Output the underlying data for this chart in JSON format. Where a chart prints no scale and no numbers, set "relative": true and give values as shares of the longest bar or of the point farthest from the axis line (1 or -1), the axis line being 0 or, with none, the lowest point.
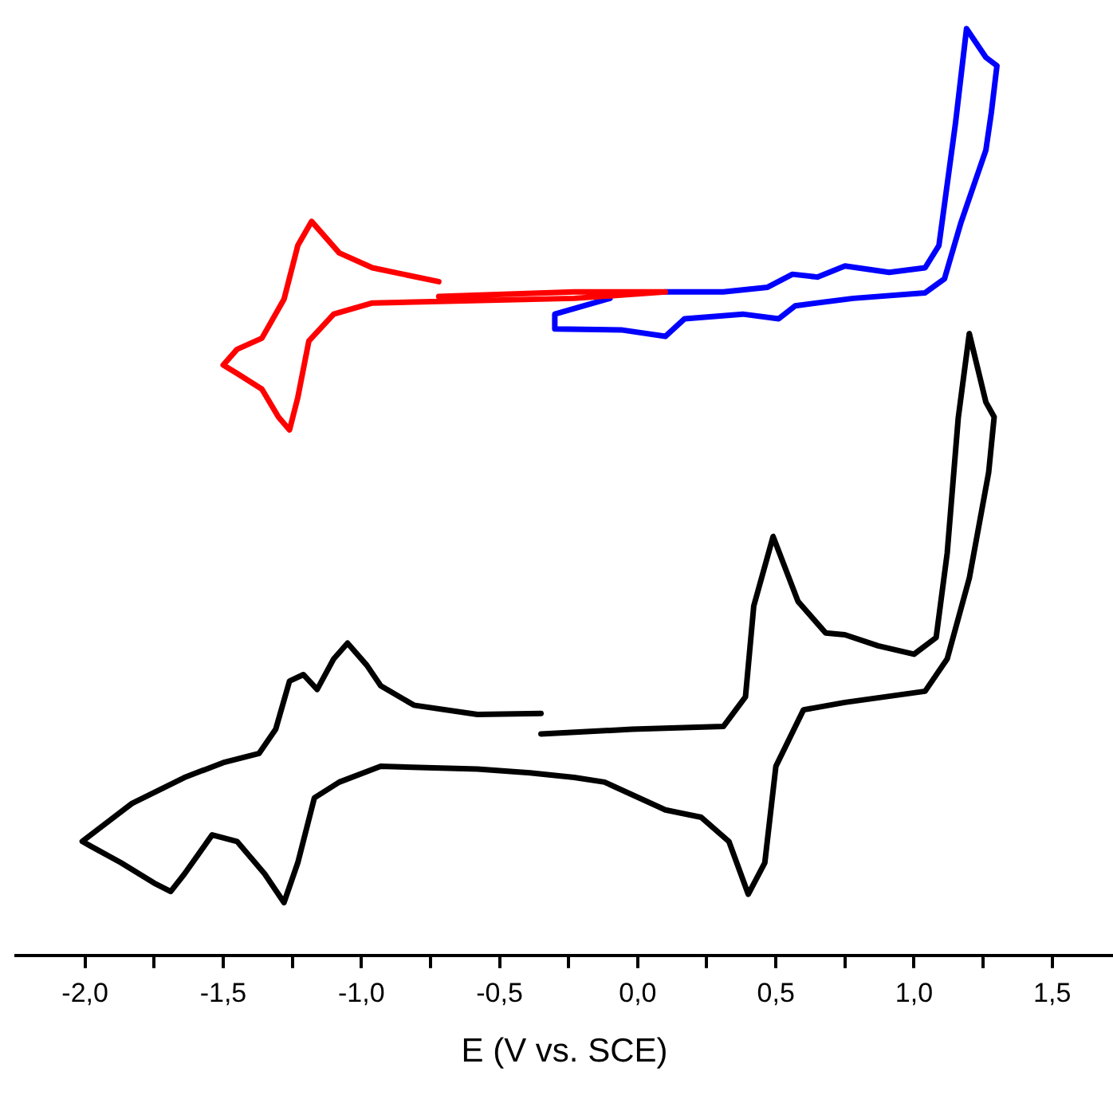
{
  "chart_data": {
    "type": "line",
    "xlabel": "E (V vs. SCE)",
    "relative": true,
    "grid": false,
    "legend": false,
    "tick_labels": "x",
    "marker": "none",
    "line_style": "solid",
    "xlim": [
      -2.25,
      1.72
    ],
    "xticks": [
      {
        "value": -2,
        "label": "-2,0"
      },
      {
        "value": -1.75,
        "label": null
      },
      {
        "value": -1.5,
        "label": "-1,5"
      },
      {
        "value": -1.25,
        "label": null
      },
      {
        "value": -1,
        "label": "-1,0"
      },
      {
        "value": -0.75,
        "label": null
      },
      {
        "value": -0.5,
        "label": "-0,5"
      },
      {
        "value": -0.25,
        "label": null
      },
      {
        "value": 0,
        "label": "0,0"
      },
      {
        "value": 0.25,
        "label": null
      },
      {
        "value": 0.5,
        "label": "0,5"
      },
      {
        "value": 0.75,
        "label": null
      },
      {
        "value": 1,
        "label": "1,0"
      },
      {
        "value": 1.25,
        "label": null
      },
      {
        "value": 1.5,
        "label": "1,5"
      }
    ],
    "series": [
      {
        "color": "#000000",
        "x": [
          -0.35,
          -0.58,
          -0.81,
          -0.93,
          -0.98,
          -1.05,
          -1.1,
          -1.16,
          -1.21,
          -1.26,
          -1.31,
          -1.37,
          -1.5,
          -1.64,
          -1.83,
          -2.01,
          -1.98,
          -1.87,
          -1.75,
          -1.69,
          -1.64,
          -1.54,
          -1.45,
          -1.35,
          -1.28,
          -1.23,
          -1.17,
          -1.08,
          -0.93,
          -0.58,
          -0.39,
          -0.23,
          -0.12,
          0.1,
          0.23,
          0.33,
          0.4,
          0.46,
          0.5,
          0.6,
          0.75,
          1.04,
          1.12,
          1.2,
          1.27,
          1.29,
          1.26,
          1.2,
          1.16,
          1.12,
          1.08,
          1.0,
          0.87,
          0.75,
          0.68,
          0.58,
          0.49,
          0.42,
          0.39,
          0.31,
          -0.02,
          -0.35
        ],
        "values": [
          0.261,
          0.26,
          0.27,
          0.291,
          0.313,
          0.337,
          0.32,
          0.287,
          0.303,
          0.296,
          0.244,
          0.218,
          0.208,
          0.192,
          0.164,
          0.123,
          0.118,
          0.1,
          0.078,
          0.069,
          0.088,
          0.13,
          0.123,
          0.088,
          0.057,
          0.1,
          0.17,
          0.187,
          0.204,
          0.201,
          0.197,
          0.192,
          0.187,
          0.157,
          0.149,
          0.123,
          0.066,
          0.1,
          0.204,
          0.265,
          0.273,
          0.285,
          0.32,
          0.407,
          0.521,
          0.581,
          0.597,
          0.671,
          0.58,
          0.434,
          0.343,
          0.325,
          0.334,
          0.346,
          0.348,
          0.382,
          0.452,
          0.377,
          0.279,
          0.247,
          0.244,
          0.239
        ]
      },
      {
        "color": "#ff0000",
        "x": [
          -0.72,
          -0.23,
          0.1,
          -0.23,
          -0.96,
          -1.1,
          -1.19,
          -1.23,
          -1.26,
          -1.3,
          -1.36,
          -1.45,
          -1.5,
          -1.45,
          -1.36,
          -1.28,
          -1.23,
          -1.18,
          -1.08,
          -0.96,
          -0.72
        ],
        "values": [
          0.711,
          0.716,
          0.716,
          0.709,
          0.704,
          0.692,
          0.663,
          0.602,
          0.567,
          0.581,
          0.611,
          0.628,
          0.637,
          0.654,
          0.666,
          0.708,
          0.766,
          0.792,
          0.758,
          0.742,
          0.727
        ]
      },
      {
        "color": "#0000ff",
        "x": [
          0.1,
          0.31,
          0.47,
          0.56,
          0.65,
          0.75,
          0.91,
          1.04,
          1.09,
          1.15,
          1.19,
          1.26,
          1.3,
          1.28,
          1.26,
          1.17,
          1.11,
          1.04,
          0.78,
          0.57,
          0.51,
          0.38,
          0.17,
          0.1,
          -0.06,
          -0.3,
          -0.3,
          -0.1
        ],
        "values": [
          0.716,
          0.716,
          0.721,
          0.735,
          0.732,
          0.744,
          0.737,
          0.742,
          0.766,
          0.898,
          1,
          0.969,
          0.96,
          0.91,
          0.869,
          0.791,
          0.73,
          0.715,
          0.709,
          0.701,
          0.687,
          0.692,
          0.687,
          0.668,
          0.675,
          0.676,
          0.692,
          0.709
        ]
      }
    ]
  }
}
